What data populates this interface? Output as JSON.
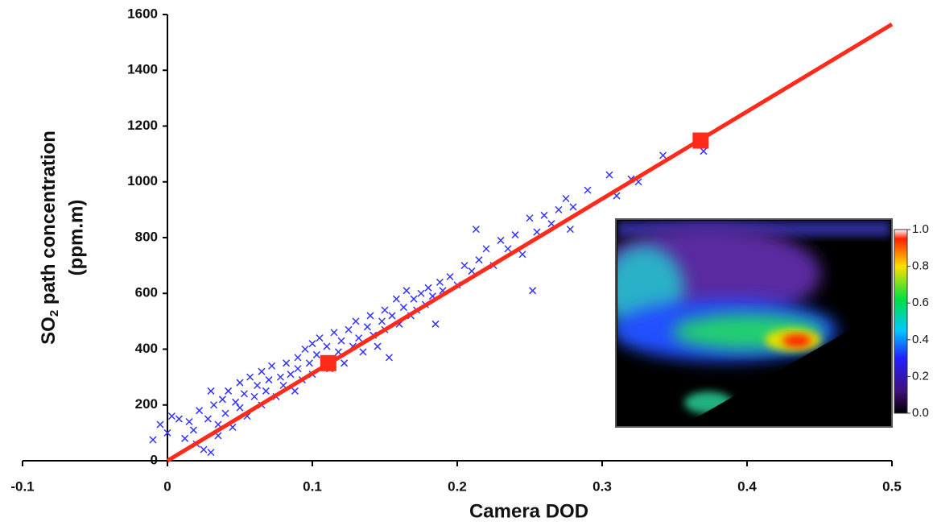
{
  "chart_data": {
    "type": "scatter",
    "xlabel": "Camera DOD",
    "ylabel": [
      "SO",
      "2",
      " path concentration",
      "(ppm.m)"
    ],
    "xlim": [
      -0.1,
      0.5
    ],
    "ylim": [
      0,
      1600
    ],
    "xticks": [
      -0.1,
      0,
      0.1,
      0.2,
      0.3,
      0.4,
      0.5
    ],
    "yticks": [
      0,
      200,
      400,
      600,
      800,
      1000,
      1200,
      1400,
      1600
    ],
    "grid": false,
    "series": [
      {
        "marker": "x",
        "color": "#3333ff",
        "x": [
          -0.01,
          -0.005,
          0,
          0.003,
          0.008,
          0.012,
          0.015,
          0.018,
          0.02,
          0.022,
          0.025,
          0.028,
          0.03,
          0.03,
          0.032,
          0.035,
          0.035,
          0.038,
          0.04,
          0.042,
          0.045,
          0.047,
          0.05,
          0.05,
          0.053,
          0.055,
          0.057,
          0.06,
          0.062,
          0.065,
          0.065,
          0.068,
          0.07,
          0.072,
          0.075,
          0.078,
          0.08,
          0.082,
          0.085,
          0.088,
          0.09,
          0.09,
          0.093,
          0.095,
          0.098,
          0.1,
          0.1,
          0.103,
          0.105,
          0.108,
          0.11,
          0.112,
          0.115,
          0.118,
          0.12,
          0.122,
          0.125,
          0.128,
          0.13,
          0.132,
          0.135,
          0.138,
          0.14,
          0.142,
          0.145,
          0.148,
          0.15,
          0.15,
          0.153,
          0.155,
          0.158,
          0.16,
          0.163,
          0.165,
          0.168,
          0.17,
          0.172,
          0.175,
          0.178,
          0.18,
          0.183,
          0.185,
          0.188,
          0.19,
          0.195,
          0.2,
          0.205,
          0.21,
          0.213,
          0.215,
          0.22,
          0.225,
          0.23,
          0.235,
          0.24,
          0.245,
          0.25,
          0.252,
          0.255,
          0.26,
          0.265,
          0.27,
          0.275,
          0.278,
          0.28,
          0.29,
          0.305,
          0.31,
          0.32,
          0.325,
          0.342,
          0.37
        ],
        "values": [
          75,
          130,
          100,
          160,
          150,
          80,
          140,
          110,
          60,
          180,
          40,
          150,
          250,
          30,
          200,
          90,
          130,
          220,
          170,
          250,
          120,
          210,
          280,
          190,
          240,
          160,
          300,
          230,
          270,
          320,
          200,
          250,
          290,
          340,
          230,
          300,
          270,
          350,
          310,
          250,
          370,
          330,
          290,
          400,
          350,
          420,
          310,
          380,
          440,
          360,
          410,
          330,
          460,
          390,
          430,
          350,
          470,
          410,
          500,
          440,
          390,
          480,
          520,
          450,
          410,
          500,
          540,
          470,
          370,
          520,
          580,
          490,
          550,
          610,
          520,
          580,
          540,
          600,
          560,
          620,
          590,
          490,
          640,
          610,
          660,
          630,
          700,
          680,
          830,
          720,
          760,
          700,
          790,
          760,
          810,
          740,
          870,
          610,
          820,
          880,
          850,
          900,
          940,
          830,
          910,
          970,
          1025,
          950,
          1010,
          1000,
          1095,
          1110
        ]
      },
      {
        "marker": "line",
        "color": "#ff2a1a",
        "x": [
          0,
          0.5
        ],
        "values": [
          0,
          1565
        ]
      },
      {
        "marker": "square",
        "color": "#ff2a1a",
        "x": [
          0.111,
          0.368
        ],
        "values": [
          350,
          1148
        ]
      }
    ],
    "inset": {
      "clim": [
        0,
        1
      ],
      "colorbar_ticks": [
        {
          "value": 0,
          "label": "0.0"
        },
        {
          "value": 0.2,
          "label": "0.2"
        },
        {
          "value": 0.4,
          "label": "0.4"
        },
        {
          "value": 0.6,
          "label": "0.6"
        },
        {
          "value": 0.8,
          "label": "0.8"
        },
        {
          "value": 1,
          "label": "1.0"
        }
      ]
    }
  }
}
